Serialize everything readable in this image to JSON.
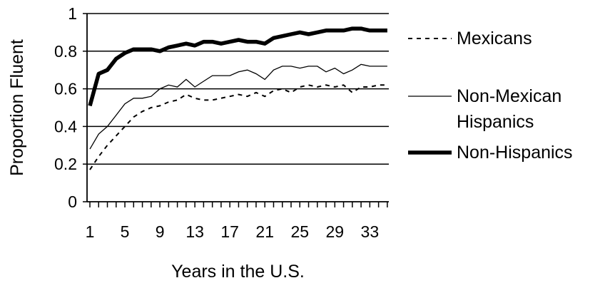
{
  "chart_data": {
    "type": "line",
    "title": "",
    "xlabel": "Years in the U.S.",
    "ylabel": "Proportion Fluent",
    "xlim": [
      1,
      35
    ],
    "ylim": [
      0,
      1
    ],
    "x_tick_labels": [
      "1",
      "5",
      "9",
      "13",
      "17",
      "21",
      "25",
      "29",
      "33"
    ],
    "y_tick_labels": [
      "0",
      "0.2",
      "0.4",
      "0.6",
      "0.8",
      "1"
    ],
    "y_ticks": [
      0,
      0.2,
      0.4,
      0.6,
      0.8,
      1
    ],
    "x_ticks": [
      1,
      5,
      9,
      13,
      17,
      21,
      25,
      29,
      33
    ],
    "grid": "horizontal",
    "legend_position": "right",
    "x": [
      1,
      2,
      3,
      4,
      5,
      6,
      7,
      8,
      9,
      10,
      11,
      12,
      13,
      14,
      15,
      16,
      17,
      18,
      19,
      20,
      21,
      22,
      23,
      24,
      25,
      26,
      27,
      28,
      29,
      30,
      31,
      32,
      33,
      34,
      35
    ],
    "series": [
      {
        "name": "Mexicans",
        "style": "dotted",
        "color": "#000000",
        "values": [
          0.17,
          0.24,
          0.3,
          0.35,
          0.4,
          0.45,
          0.48,
          0.5,
          0.51,
          0.53,
          0.54,
          0.57,
          0.55,
          0.54,
          0.54,
          0.55,
          0.56,
          0.57,
          0.56,
          0.58,
          0.56,
          0.59,
          0.6,
          0.58,
          0.61,
          0.62,
          0.61,
          0.62,
          0.61,
          0.62,
          0.58,
          0.61,
          0.61,
          0.62,
          0.62
        ]
      },
      {
        "name": "Non-Mexican Hispanics",
        "style": "thin",
        "color": "#000000",
        "values": [
          0.28,
          0.36,
          0.4,
          0.46,
          0.52,
          0.55,
          0.55,
          0.56,
          0.6,
          0.62,
          0.61,
          0.65,
          0.61,
          0.64,
          0.67,
          0.67,
          0.67,
          0.69,
          0.7,
          0.68,
          0.65,
          0.7,
          0.72,
          0.72,
          0.71,
          0.72,
          0.72,
          0.69,
          0.71,
          0.68,
          0.7,
          0.73,
          0.72,
          0.72,
          0.72
        ]
      },
      {
        "name": "Non-Hispanics",
        "style": "thick",
        "color": "#000000",
        "values": [
          0.51,
          0.68,
          0.7,
          0.76,
          0.79,
          0.81,
          0.81,
          0.81,
          0.8,
          0.82,
          0.83,
          0.84,
          0.83,
          0.85,
          0.85,
          0.84,
          0.85,
          0.86,
          0.85,
          0.85,
          0.84,
          0.87,
          0.88,
          0.89,
          0.9,
          0.89,
          0.9,
          0.91,
          0.91,
          0.91,
          0.92,
          0.92,
          0.91,
          0.91,
          0.91
        ]
      }
    ]
  }
}
